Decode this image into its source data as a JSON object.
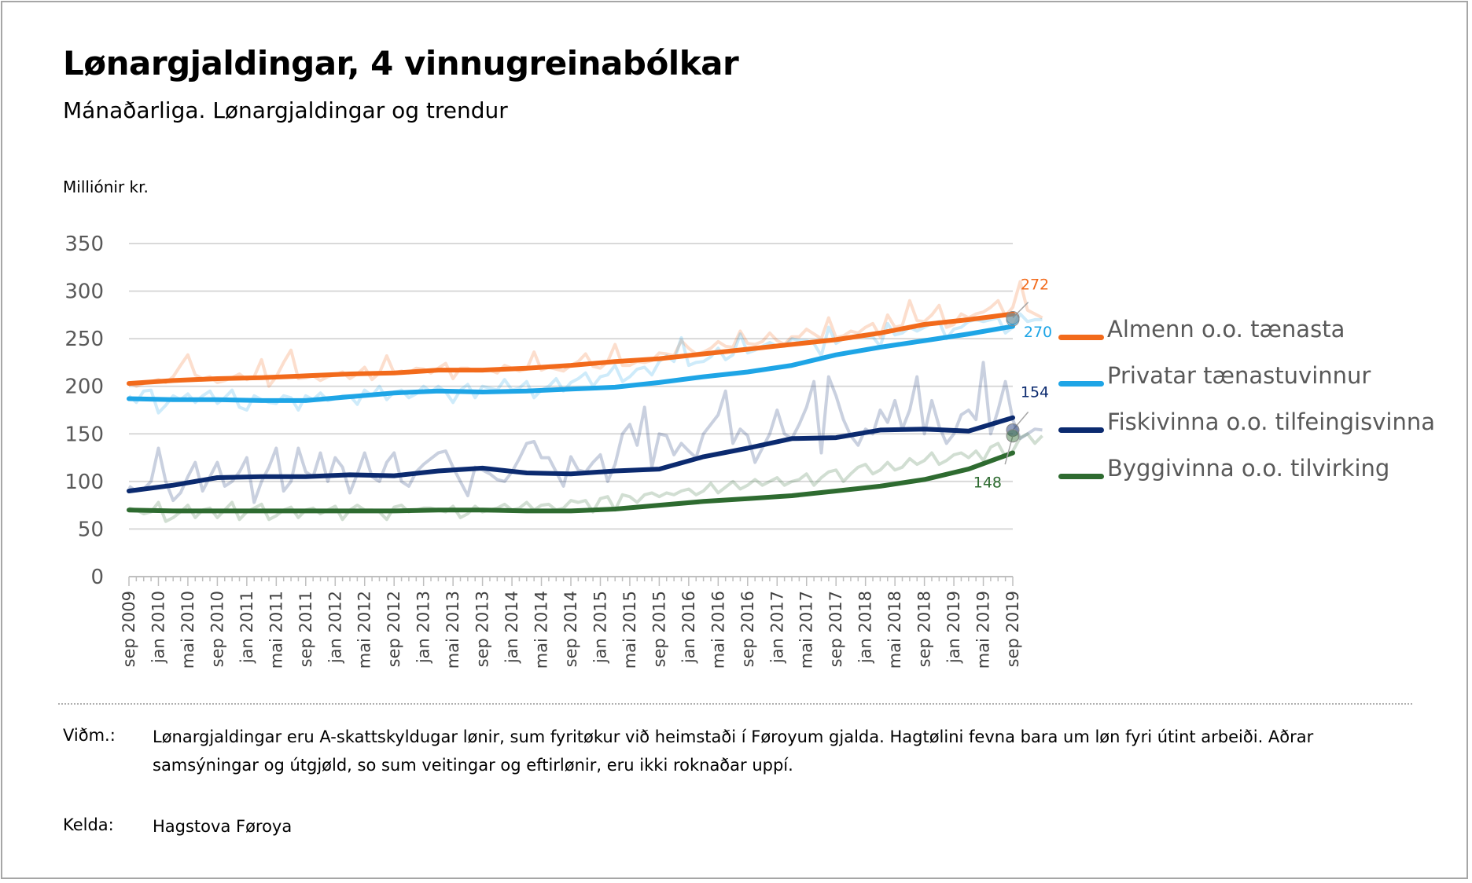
{
  "title": "Lønargjaldingar, 4 vinnugreinabólkar",
  "subtitle": "Mánaðarliga. Lønargjaldingar og trendur",
  "unit_label": "Milliónir kr.",
  "note_label": "Viðm.:",
  "note_text": "Lønargjaldingar eru A-skattskyldugar lønir, sum fyritøkur við heimstaði í Føroyum gjalda. Hagtølini fevna bara um løn fyri útint arbeiði. Aðrar samsýningar og útgjøld, so sum veitingar og eftirlønir, eru ikki roknaðar uppí.",
  "source_label": "Kelda:",
  "source_text": "Hagstova Føroya",
  "chart_data": {
    "type": "line",
    "ylabel": "Milliónir kr.",
    "ylim": [
      0,
      350
    ],
    "yticks": [
      0,
      50,
      100,
      150,
      200,
      250,
      300,
      350
    ],
    "grid": true,
    "legend_position": "right",
    "x_ticks": [
      "sep 2009",
      "jan 2010",
      "mai 2010",
      "sep 2010",
      "jan 2011",
      "mai 2011",
      "sep 2011",
      "jan 2012",
      "mai 2012",
      "sep 2012",
      "jan 2013",
      "mai 2013",
      "sep 2013",
      "jan 2014",
      "mai 2014",
      "sep 2014",
      "jan 2015",
      "mai 2015",
      "sep 2015",
      "jan 2016",
      "mai 2016",
      "sep 2016",
      "jan 2017",
      "mai 2017",
      "sep 2017",
      "jan 2018",
      "mai 2018",
      "sep 2018",
      "jan 2019",
      "mai 2019",
      "sep 2019"
    ],
    "series": [
      {
        "name": "Almenn o.o. tænasta",
        "color": "#f26a1b",
        "end_label": "272",
        "trend": [
          203,
          206,
          208,
          209,
          211,
          213,
          214,
          217,
          217,
          219,
          222,
          226,
          229,
          234,
          239,
          244,
          249,
          256,
          265,
          270,
          276
        ],
        "monthly": [
          204,
          200,
          203,
          205,
          207,
          204,
          210,
          222,
          233,
          212,
          208,
          210,
          204,
          206,
          209,
          213,
          207,
          210,
          228,
          200,
          210,
          225,
          238,
          208,
          209,
          211,
          206,
          210,
          212,
          215,
          208,
          213,
          220,
          207,
          214,
          232,
          214,
          216,
          214,
          219,
          218,
          214,
          219,
          224,
          208,
          219,
          219,
          216,
          216,
          217,
          214,
          222,
          219,
          216,
          218,
          236,
          217,
          220,
          218,
          216,
          222,
          226,
          234,
          221,
          219,
          226,
          244,
          222,
          222,
          226,
          225,
          227,
          235,
          234,
          232,
          248,
          240,
          234,
          236,
          240,
          247,
          242,
          241,
          258,
          245,
          244,
          247,
          256,
          248,
          244,
          252,
          252,
          260,
          255,
          250,
          272,
          251,
          253,
          258,
          256,
          262,
          266,
          252,
          275,
          262,
          264,
          290,
          269,
          268,
          275,
          285,
          262,
          265,
          276,
          272,
          276,
          278,
          283,
          290,
          274,
          283,
          310,
          280,
          276,
          272
        ]
      },
      {
        "name": "Privatar tænastuvinnur",
        "color": "#1ea5e6",
        "end_label": "270",
        "trend": [
          187,
          186,
          186,
          185,
          185,
          189,
          193,
          195,
          194,
          195,
          197,
          199,
          204,
          210,
          215,
          222,
          233,
          241,
          248,
          255,
          263
        ],
        "monthly": [
          190,
          183,
          195,
          196,
          172,
          180,
          190,
          186,
          192,
          183,
          190,
          195,
          182,
          188,
          196,
          178,
          175,
          190,
          186,
          183,
          182,
          190,
          188,
          175,
          190,
          186,
          193,
          185,
          187,
          190,
          190,
          181,
          196,
          190,
          200,
          186,
          194,
          196,
          188,
          192,
          200,
          194,
          200,
          194,
          183,
          196,
          202,
          188,
          200,
          198,
          196,
          207,
          196,
          198,
          205,
          188,
          196,
          200,
          208,
          195,
          204,
          208,
          214,
          200,
          210,
          212,
          222,
          205,
          210,
          218,
          220,
          212,
          226,
          232,
          226,
          251,
          222,
          225,
          226,
          231,
          240,
          228,
          233,
          255,
          235,
          238,
          242,
          246,
          242,
          242,
          250,
          248,
          248,
          245,
          232,
          262,
          245,
          250,
          250,
          254,
          252,
          252,
          242,
          266,
          254,
          256,
          262,
          258,
          262,
          266,
          268,
          250,
          260,
          262,
          268,
          270,
          268,
          270,
          272,
          256,
          262,
          276,
          268,
          270,
          270
        ]
      },
      {
        "name": "Fiskivinna o.o. tilfeingisvinna",
        "color": "#0b2a6f",
        "end_label": "154",
        "trend": [
          90,
          96,
          104,
          105,
          105,
          107,
          106,
          111,
          114,
          109,
          108,
          111,
          113,
          126,
          135,
          145,
          146,
          154,
          155,
          153,
          167
        ],
        "monthly": [
          95,
          90,
          92,
          100,
          135,
          100,
          80,
          88,
          105,
          120,
          90,
          105,
          120,
          95,
          100,
          110,
          125,
          78,
          100,
          115,
          135,
          90,
          100,
          135,
          110,
          105,
          130,
          100,
          125,
          115,
          88,
          108,
          130,
          105,
          100,
          120,
          130,
          100,
          95,
          110,
          118,
          124,
          130,
          132,
          115,
          100,
          85,
          115,
          112,
          108,
          102,
          100,
          110,
          124,
          140,
          142,
          125,
          125,
          110,
          95,
          126,
          112,
          110,
          120,
          128,
          100,
          118,
          150,
          160,
          138,
          178,
          115,
          150,
          148,
          128,
          140,
          132,
          125,
          150,
          160,
          170,
          195,
          140,
          155,
          148,
          120,
          135,
          150,
          175,
          150,
          145,
          160,
          178,
          205,
          130,
          210,
          190,
          165,
          148,
          138,
          155,
          150,
          175,
          162,
          185,
          155,
          175,
          210,
          150,
          185,
          158,
          140,
          150,
          170,
          175,
          165,
          225,
          150,
          175,
          205,
          165,
          145,
          150,
          155,
          154
        ]
      },
      {
        "name": "Byggivinna o.o. tilvirking",
        "color": "#2e6b30",
        "end_label": "148",
        "trend": [
          70,
          69,
          69,
          69,
          69,
          69,
          69,
          70,
          70,
          69,
          69,
          71,
          75,
          79,
          82,
          85,
          90,
          95,
          102,
          113,
          130
        ],
        "monthly": [
          72,
          70,
          66,
          68,
          78,
          58,
          62,
          68,
          75,
          62,
          70,
          72,
          62,
          70,
          78,
          60,
          68,
          72,
          76,
          60,
          64,
          70,
          73,
          62,
          70,
          72,
          66,
          70,
          74,
          60,
          70,
          75,
          70,
          70,
          68,
          60,
          73,
          75,
          68,
          70,
          72,
          72,
          70,
          68,
          74,
          62,
          66,
          74,
          68,
          70,
          72,
          76,
          70,
          72,
          78,
          70,
          75,
          76,
          70,
          72,
          80,
          78,
          80,
          68,
          82,
          84,
          70,
          86,
          84,
          78,
          86,
          88,
          84,
          88,
          86,
          90,
          92,
          86,
          90,
          98,
          88,
          94,
          100,
          92,
          96,
          102,
          96,
          100,
          104,
          96,
          100,
          102,
          108,
          96,
          104,
          110,
          112,
          100,
          108,
          115,
          118,
          108,
          112,
          120,
          112,
          115,
          124,
          118,
          122,
          130,
          118,
          122,
          128,
          130,
          125,
          132,
          122,
          136,
          140,
          126,
          132,
          146,
          150,
          140,
          148
        ]
      }
    ]
  }
}
